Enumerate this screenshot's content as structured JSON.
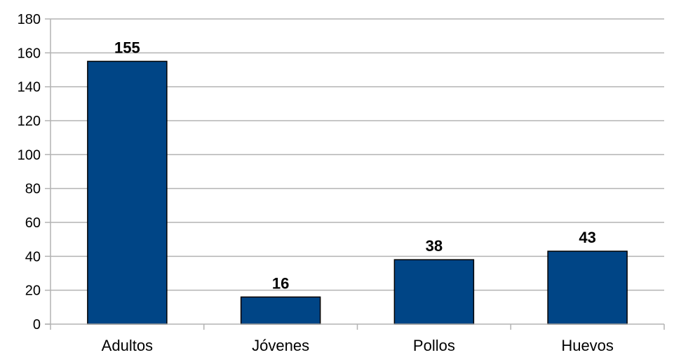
{
  "chart_data": {
    "type": "bar",
    "categories": [
      "Adultos",
      "Jóvenes",
      "Pollos",
      "Huevos"
    ],
    "values": [
      155,
      16,
      38,
      43
    ],
    "data_labels": [
      "155",
      "16",
      "38",
      "43"
    ],
    "ylim": [
      0,
      180
    ],
    "yticks": [
      0,
      20,
      40,
      60,
      80,
      100,
      120,
      140,
      160,
      180
    ],
    "grid": true,
    "legend": "none",
    "bar_color": "#004586"
  }
}
